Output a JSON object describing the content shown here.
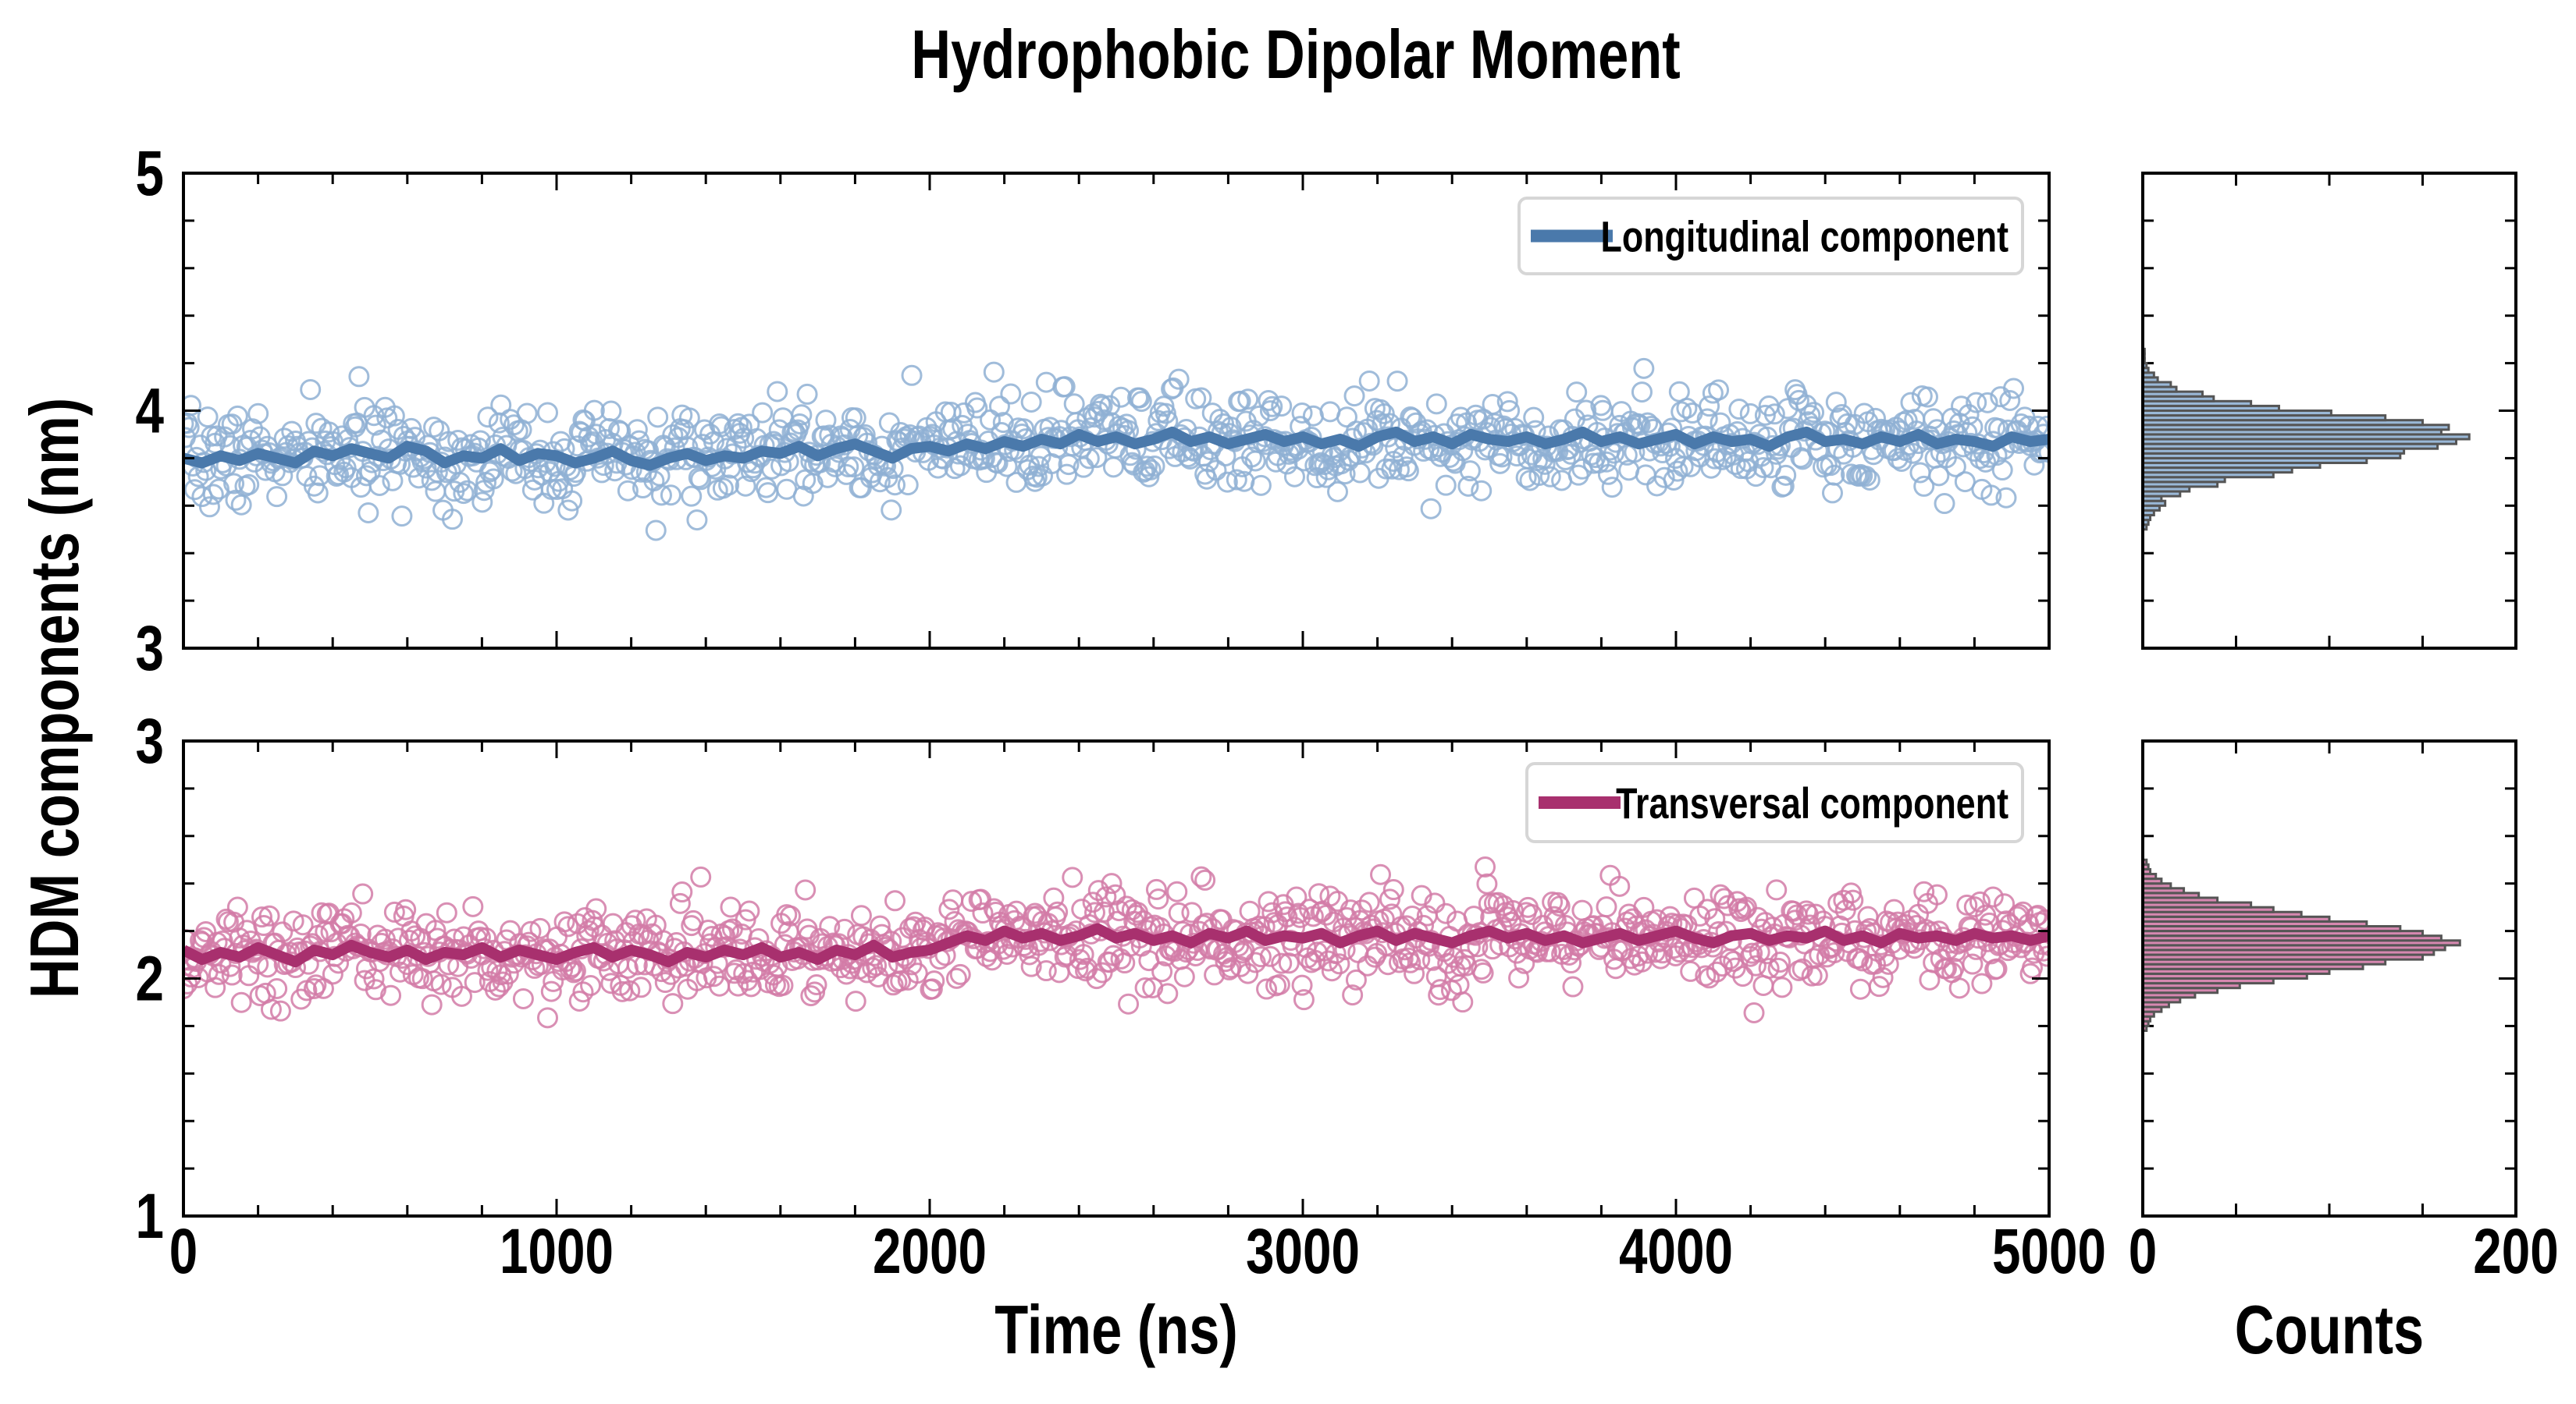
{
  "chart_data": {
    "title": "Hydrophobic Dipolar Moment",
    "ylabel": "HDM components (nm)",
    "xlabel": "Time (ns)",
    "hist_xlabel": "Counts",
    "colors": {
      "long_line": "#4a79ab",
      "long_marker": "#8fb0d3",
      "trans_line": "#a8306e",
      "trans_marker": "#d27ba7",
      "hist_edge": "#555555"
    },
    "xlim": [
      0,
      5000
    ],
    "xticks": [
      "0",
      "1000",
      "2000",
      "3000",
      "4000",
      "5000"
    ],
    "hist_xlim": [
      0,
      200
    ],
    "hist_xticks": [
      "0",
      "200"
    ],
    "panels": [
      {
        "type": "scatter+line",
        "legend": "Longitudinal component",
        "legend_position": "top-right",
        "ylim": [
          3,
          5
        ],
        "yticks": [
          "3",
          "4",
          "5"
        ],
        "scatter": {
          "n_points": 1000,
          "noise_sd": 0.1,
          "seed": 7
        },
        "running_average": [
          3.8,
          3.78,
          3.81,
          3.79,
          3.82,
          3.8,
          3.78,
          3.83,
          3.81,
          3.84,
          3.82,
          3.8,
          3.85,
          3.83,
          3.78,
          3.81,
          3.8,
          3.84,
          3.79,
          3.82,
          3.81,
          3.78,
          3.8,
          3.83,
          3.79,
          3.77,
          3.8,
          3.82,
          3.79,
          3.81,
          3.8,
          3.83,
          3.82,
          3.85,
          3.81,
          3.84,
          3.86,
          3.83,
          3.8,
          3.84,
          3.85,
          3.83,
          3.86,
          3.84,
          3.87,
          3.85,
          3.88,
          3.86,
          3.9,
          3.87,
          3.89,
          3.86,
          3.88,
          3.91,
          3.87,
          3.89,
          3.86,
          3.88,
          3.9,
          3.87,
          3.89,
          3.86,
          3.88,
          3.85,
          3.89,
          3.91,
          3.87,
          3.89,
          3.86,
          3.9,
          3.88,
          3.87,
          3.89,
          3.86,
          3.88,
          3.91,
          3.87,
          3.89,
          3.86,
          3.88,
          3.9,
          3.86,
          3.89,
          3.87,
          3.88,
          3.85,
          3.89,
          3.91,
          3.87,
          3.88,
          3.86,
          3.89,
          3.87,
          3.9,
          3.86,
          3.88,
          3.87,
          3.85,
          3.89,
          3.87,
          3.88
        ],
        "histogram": {
          "bin_start": 3.5,
          "bin_width": 0.02,
          "counts": [
            2,
            3,
            4,
            6,
            9,
            12,
            10,
            20,
            25,
            40,
            44,
            70,
            80,
            95,
            120,
            138,
            140,
            158,
            168,
            175,
            160,
            164,
            150,
            130,
            101,
            73,
            58,
            38,
            32,
            18,
            15,
            8,
            6,
            3,
            2,
            1,
            1,
            1
          ]
        }
      },
      {
        "type": "scatter+line",
        "legend": "Transversal component",
        "legend_position": "top-right",
        "ylim": [
          1,
          3
        ],
        "yticks": [
          "1",
          "2",
          "3"
        ],
        "scatter": {
          "n_points": 1000,
          "noise_sd": 0.1,
          "seed": 13
        },
        "running_average": [
          2.12,
          2.08,
          2.11,
          2.09,
          2.13,
          2.1,
          2.07,
          2.12,
          2.1,
          2.14,
          2.11,
          2.09,
          2.12,
          2.08,
          2.11,
          2.1,
          2.13,
          2.09,
          2.12,
          2.1,
          2.08,
          2.11,
          2.13,
          2.09,
          2.12,
          2.1,
          2.07,
          2.11,
          2.09,
          2.12,
          2.1,
          2.13,
          2.09,
          2.11,
          2.08,
          2.12,
          2.1,
          2.14,
          2.09,
          2.11,
          2.12,
          2.15,
          2.18,
          2.16,
          2.2,
          2.17,
          2.19,
          2.16,
          2.18,
          2.21,
          2.17,
          2.19,
          2.16,
          2.18,
          2.15,
          2.19,
          2.17,
          2.2,
          2.16,
          2.18,
          2.17,
          2.19,
          2.15,
          2.18,
          2.2,
          2.16,
          2.19,
          2.17,
          2.15,
          2.18,
          2.2,
          2.17,
          2.19,
          2.16,
          2.18,
          2.15,
          2.17,
          2.19,
          2.16,
          2.18,
          2.2,
          2.17,
          2.15,
          2.18,
          2.19,
          2.16,
          2.18,
          2.17,
          2.2,
          2.16,
          2.18,
          2.15,
          2.19,
          2.17,
          2.18,
          2.16,
          2.19,
          2.17,
          2.18,
          2.16,
          2.18
        ],
        "histogram": {
          "bin_start": 1.78,
          "bin_width": 0.02,
          "counts": [
            2,
            3,
            4,
            6,
            10,
            14,
            20,
            28,
            40,
            52,
            70,
            88,
            100,
            118,
            130,
            150,
            156,
            162,
            170,
            160,
            150,
            138,
            120,
            100,
            85,
            70,
            58,
            40,
            30,
            22,
            15,
            10,
            7,
            4,
            3,
            2
          ]
        }
      }
    ]
  }
}
